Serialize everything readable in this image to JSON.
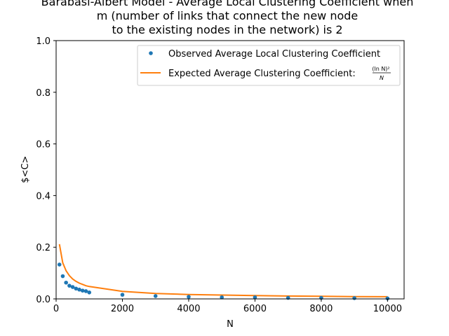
{
  "chart_data": {
    "type": "scatter",
    "title_lines": [
      "Barabasi-Albert Model - Average Local Clustering Coefficient when",
      "m (number of links that connect the new node",
      "to the existing nodes in the network) is 2"
    ],
    "xlabel": "N",
    "ylabel": "$<C>",
    "xlim": [
      0,
      10500
    ],
    "ylim": [
      0,
      1.0
    ],
    "x_ticks": [
      0,
      2000,
      4000,
      6000,
      8000,
      10000
    ],
    "y_ticks": [
      0.0,
      0.2,
      0.4,
      0.6,
      0.8,
      1.0
    ],
    "grid": false,
    "legend_position": "top-right",
    "series": [
      {
        "name": "Observed Average Local Clustering Coefficient",
        "kind": "markers",
        "color": "#1f77b4",
        "x": [
          100,
          200,
          300,
          400,
          500,
          600,
          700,
          800,
          900,
          1000,
          2000,
          3000,
          4000,
          5000,
          6000,
          7000,
          8000,
          9000,
          10000
        ],
        "y": [
          0.133,
          0.088,
          0.063,
          0.051,
          0.046,
          0.04,
          0.036,
          0.032,
          0.03,
          0.025,
          0.016,
          0.011,
          0.008,
          0.006,
          0.006,
          0.004,
          0.004,
          0.003,
          0.002
        ]
      },
      {
        "name": "Expected Average Clustering Coefficient:",
        "formula_num": "(ln N)²",
        "formula_den": "N",
        "kind": "line",
        "color": "#ff7f0e",
        "x": [
          100,
          200,
          300,
          400,
          500,
          600,
          700,
          800,
          900,
          1000,
          2000,
          3000,
          4000,
          5000,
          6000,
          7000,
          8000,
          9000,
          10000
        ],
        "y": [
          0.212,
          0.14,
          0.109,
          0.09,
          0.077,
          0.068,
          0.061,
          0.056,
          0.051,
          0.048,
          0.029,
          0.021,
          0.017,
          0.015,
          0.013,
          0.011,
          0.01,
          0.009,
          0.0085
        ]
      }
    ]
  }
}
